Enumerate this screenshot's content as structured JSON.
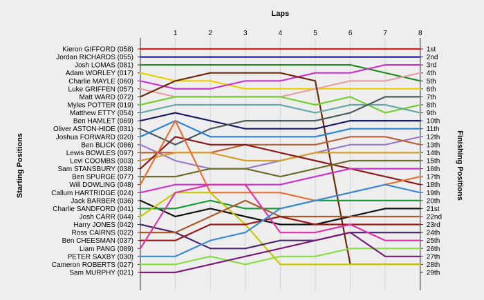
{
  "chart_data": {
    "type": "line",
    "title": "",
    "x_axis_label": "Laps",
    "left_axis_label": "Starting Positions",
    "right_axis_label": "Finishing Positions",
    "laps": [
      "1",
      "2",
      "3",
      "4",
      "5",
      "6",
      "7",
      "8"
    ],
    "finishing_labels": [
      "1st",
      "2nd",
      "3rd",
      "4th",
      "5th",
      "6th",
      "7th",
      "8th",
      "9th",
      "10th",
      "11th",
      "12th",
      "13th",
      "14th",
      "15th",
      "16th",
      "17th",
      "18th",
      "19th",
      "20th",
      "21st",
      "22nd",
      "23rd",
      "24th",
      "25th",
      "26th",
      "27th",
      "28th",
      "29th"
    ],
    "legend": "none",
    "series": [
      {
        "name": "Kieron GIFFORD (058)",
        "color": "#cc2222",
        "positions": [
          1,
          1,
          1,
          1,
          1,
          1,
          1,
          1,
          1
        ]
      },
      {
        "name": "Jordan RICHARDS (055)",
        "color": "#2222aa",
        "positions": [
          2,
          2,
          2,
          2,
          2,
          2,
          2,
          2,
          2
        ]
      },
      {
        "name": "Josh LOMAS (081)",
        "color": "#228b22",
        "positions": [
          3,
          3,
          3,
          3,
          3,
          3,
          3,
          4,
          5
        ]
      },
      {
        "name": "Adam WORLEY (017)",
        "color": "#e8d000",
        "positions": [
          4,
          5,
          5,
          6,
          6,
          6,
          6,
          6,
          6
        ]
      },
      {
        "name": "Charlie MAYLE (060)",
        "color": "#cc33cc",
        "positions": [
          5,
          6,
          6,
          5,
          5,
          4,
          4,
          3,
          3
        ]
      },
      {
        "name": "Luke GRIFFEN (057)",
        "color": "#e8a0a0",
        "positions": [
          6,
          7,
          7,
          7,
          7,
          6,
          5,
          5,
          4
        ]
      },
      {
        "name": "Matt WARD (072)",
        "color": "#6b2a0a",
        "positions": [
          7,
          5,
          4,
          4,
          4,
          5,
          28,
          28,
          28
        ]
      },
      {
        "name": "Myles POTTER (019)",
        "color": "#77cc33",
        "positions": [
          8,
          7,
          7,
          7,
          7,
          8,
          7,
          9,
          8
        ]
      },
      {
        "name": "Matthew ETTY (054)",
        "color": "#66a8a8",
        "positions": [
          9,
          8,
          8,
          8,
          8,
          9,
          8,
          8,
          9
        ]
      },
      {
        "name": "Ben HAMLET (069)",
        "color": "#1a1a66",
        "positions": [
          10,
          9,
          10,
          11,
          11,
          11,
          10,
          10,
          10
        ]
      },
      {
        "name": "Oliver ASTON-HIDE (031)",
        "color": "#4a5a5a",
        "positions": [
          11,
          13,
          11,
          10,
          10,
          10,
          9,
          7,
          7
        ]
      },
      {
        "name": "Joshua FORWARD (020)",
        "color": "#2c82d8",
        "positions": [
          12,
          10,
          12,
          12,
          12,
          12,
          11,
          11,
          11
        ]
      },
      {
        "name": "Ben BLICK (086)",
        "color": "#9a7acc",
        "positions": [
          13,
          15,
          16,
          16,
          15,
          14,
          13,
          13,
          12
        ]
      },
      {
        "name": "Lewis BOWLES (097)",
        "color": "#b8623a",
        "positions": [
          14,
          14,
          14,
          13,
          13,
          13,
          12,
          12,
          13
        ]
      },
      {
        "name": "Levi COOMBS (003)",
        "color": "#d0a030",
        "positions": [
          15,
          14,
          14,
          15,
          15,
          14,
          14,
          14,
          14
        ]
      },
      {
        "name": "Sam STANSBURY (038)",
        "color": "#8b1a1a",
        "positions": [
          16,
          12,
          13,
          13,
          14,
          15,
          16,
          17,
          18
        ]
      },
      {
        "name": "Ben SPURGE (077)",
        "color": "#6b6b2a",
        "positions": [
          17,
          17,
          16,
          16,
          17,
          16,
          15,
          15,
          15
        ]
      },
      {
        "name": "Will DOWLING (048)",
        "color": "#e87030",
        "positions": [
          18,
          10,
          19,
          19,
          19,
          20,
          19,
          18,
          17
        ]
      },
      {
        "name": "Callum HARTRIDGE (024)",
        "color": "#cc33cc",
        "positions": [
          19,
          18,
          18,
          18,
          18,
          17,
          16,
          16,
          16
        ]
      },
      {
        "name": "Jack BARBER (036)",
        "color": "#111111",
        "positions": [
          20,
          22,
          21,
          22,
          23,
          23,
          22,
          21,
          21
        ]
      },
      {
        "name": "Charlie SANDFORD (041)",
        "color": "#1b9a3a",
        "positions": [
          21,
          21,
          20,
          21,
          21,
          20,
          20,
          20,
          20
        ]
      },
      {
        "name": "Josh CARR (044)",
        "color": "#c8c800",
        "positions": [
          22,
          19,
          19,
          23,
          28,
          28,
          28,
          28,
          28
        ]
      },
      {
        "name": "Harry JONES (042)",
        "color": "#4a2a6a",
        "positions": [
          23,
          24,
          26,
          26,
          25,
          25,
          24,
          24,
          24
        ]
      },
      {
        "name": "Ross CAIRNS (022)",
        "color": "#a85a28",
        "positions": [
          24,
          24,
          22,
          20,
          22,
          22,
          22,
          22,
          22
        ]
      },
      {
        "name": "Ben CHEESMAN (037)",
        "color": "#9a1a1a",
        "positions": [
          25,
          25,
          23,
          23,
          22,
          23,
          23,
          23,
          23
        ]
      },
      {
        "name": "Liam PANG (089)",
        "color": "#dd33aa",
        "positions": [
          26,
          19,
          18,
          18,
          24,
          24,
          23,
          25,
          25
        ]
      },
      {
        "name": "PETER SAXBY (030)",
        "color": "#3a8ad8",
        "positions": [
          27,
          27,
          25,
          24,
          21,
          20,
          19,
          18,
          19
        ]
      },
      {
        "name": "Cameron ROBERTS (027)",
        "color": "#88dd44",
        "positions": [
          28,
          28,
          27,
          28,
          27,
          27,
          26,
          26,
          26
        ]
      },
      {
        "name": "Sam MURPHY (021)",
        "color": "#7a1a7a",
        "positions": [
          29,
          29,
          28,
          27,
          26,
          25,
          24,
          27,
          27
        ]
      }
    ]
  }
}
